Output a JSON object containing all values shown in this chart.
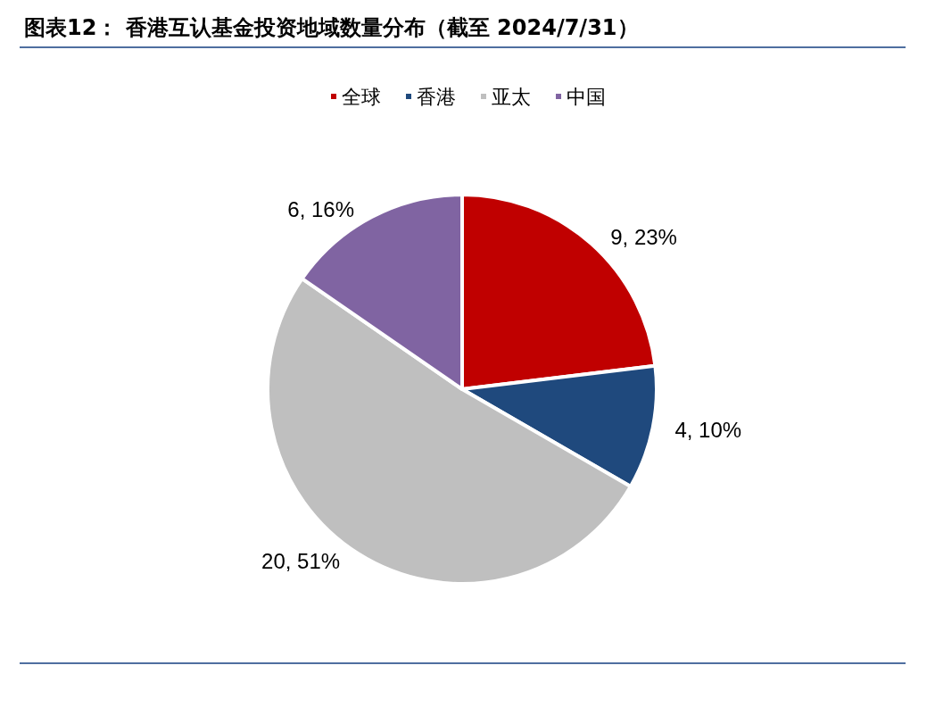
{
  "chart_data": {
    "type": "pie",
    "title": "图表12： 香港互认基金投资地域数量分布（截至 2024/7/31）",
    "categories": [
      "全球",
      "香港",
      "亚太",
      "中国"
    ],
    "values": [
      9,
      4,
      20,
      6
    ],
    "value_labels": [
      "9, 23%",
      "4, 10%",
      "20, 51%",
      "6, 16%"
    ],
    "colors": [
      "#c00000",
      "#1f497d",
      "#bfbfbf",
      "#8064a2"
    ],
    "legend": "top"
  }
}
